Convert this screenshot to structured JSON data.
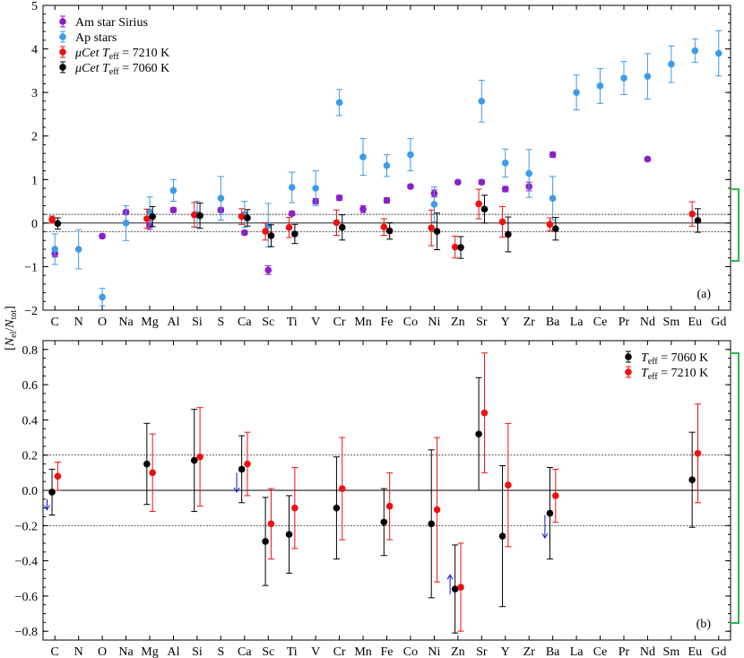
{
  "colors": {
    "am_sirius": "#8b1fc8",
    "ap_stars": "#3d9be9",
    "teff_7210": "#ee1111",
    "teff_7060": "#000000",
    "arrow": "#1010cc",
    "bracket": "#2fb84a",
    "axis": "#000000"
  },
  "ylabel": "[N_el/N_tot]",
  "chart_data": [
    {
      "type": "scatter",
      "panel": "(a)",
      "categories": [
        "C",
        "N",
        "O",
        "Na",
        "Mg",
        "Al",
        "Si",
        "S",
        "Ca",
        "Sc",
        "Ti",
        "V",
        "Cr",
        "Mn",
        "Fe",
        "Co",
        "Ni",
        "Zn",
        "Sr",
        "Y",
        "Zr",
        "Ba",
        "La",
        "Ce",
        "Pr",
        "Nd",
        "Sm",
        "Eu",
        "Gd"
      ],
      "ylim": [
        -2,
        5
      ],
      "yticks": [
        -2,
        -1,
        0,
        1,
        2,
        3,
        4,
        5
      ],
      "hlines": [
        0,
        0.2,
        -0.2
      ],
      "legend_position": "top-left",
      "series": [
        {
          "name": "Am star Sirius",
          "color_key": "am_sirius",
          "points": [
            {
              "el": "C",
              "y": -0.7,
              "err": 0.08
            },
            {
              "el": "O",
              "y": -0.3,
              "err": 0.05
            },
            {
              "el": "Na",
              "y": 0.25,
              "err": 0.05
            },
            {
              "el": "Mg",
              "y": -0.05,
              "err": 0.1
            },
            {
              "el": "Al",
              "y": 0.3,
              "err": 0.05
            },
            {
              "el": "Si",
              "y": 0.2,
              "err": 0.05
            },
            {
              "el": "S",
              "y": 0.3,
              "err": 0.05
            },
            {
              "el": "Ca",
              "y": -0.22,
              "err": 0.05
            },
            {
              "el": "Sc",
              "y": -1.08,
              "err": 0.1
            },
            {
              "el": "Ti",
              "y": 0.22,
              "err": 0.05
            },
            {
              "el": "V",
              "y": 0.5,
              "err": 0.06
            },
            {
              "el": "Cr",
              "y": 0.58,
              "err": 0.06
            },
            {
              "el": "Mn",
              "y": 0.32,
              "err": 0.08
            },
            {
              "el": "Fe",
              "y": 0.52,
              "err": 0.06
            },
            {
              "el": "Co",
              "y": 0.84,
              "err": 0.04
            },
            {
              "el": "Ni",
              "y": 0.68,
              "err": 0.08
            },
            {
              "el": "Zn",
              "y": 0.94,
              "err": 0.04
            },
            {
              "el": "Sr",
              "y": 0.94,
              "err": 0.05
            },
            {
              "el": "Y",
              "y": 0.78,
              "err": 0.06
            },
            {
              "el": "Zr",
              "y": 0.84,
              "err": 0.1
            },
            {
              "el": "Ba",
              "y": 1.57,
              "err": 0.06
            },
            {
              "el": "Nd",
              "y": 1.47,
              "err": 0.04
            }
          ]
        },
        {
          "name": "Ap stars",
          "color_key": "ap_stars",
          "points": [
            {
              "el": "C",
              "y": -0.6,
              "err": 0.35
            },
            {
              "el": "N",
              "y": -0.6,
              "err": 0.45
            },
            {
              "el": "O",
              "y": -1.7,
              "err": 0.2
            },
            {
              "el": "Na",
              "y": 0.0,
              "err": 0.4
            },
            {
              "el": "Mg",
              "y": 0.25,
              "err": 0.35
            },
            {
              "el": "Al",
              "y": 0.75,
              "err": 0.25
            },
            {
              "el": "Si",
              "y": 0.2,
              "err": 0.3
            },
            {
              "el": "S",
              "y": 0.57,
              "err": 0.5
            },
            {
              "el": "Ca",
              "y": 0.2,
              "err": 0.3
            },
            {
              "el": "Sc",
              "y": -0.05,
              "err": 0.5
            },
            {
              "el": "Ti",
              "y": 0.82,
              "err": 0.35
            },
            {
              "el": "V",
              "y": 0.8,
              "err": 0.4
            },
            {
              "el": "Cr",
              "y": 2.77,
              "err": 0.3
            },
            {
              "el": "Mn",
              "y": 1.52,
              "err": 0.42
            },
            {
              "el": "Fe",
              "y": 1.32,
              "err": 0.25
            },
            {
              "el": "Co",
              "y": 1.57,
              "err": 0.37
            },
            {
              "el": "Ni",
              "y": 0.43,
              "err": 0.4
            },
            {
              "el": "Sr",
              "y": 2.8,
              "err": 0.48
            },
            {
              "el": "Y",
              "y": 1.38,
              "err": 0.32
            },
            {
              "el": "Zr",
              "y": 1.14,
              "err": 0.55
            },
            {
              "el": "Ba",
              "y": 0.57,
              "err": 0.5
            },
            {
              "el": "La",
              "y": 3.0,
              "err": 0.4
            },
            {
              "el": "Ce",
              "y": 3.15,
              "err": 0.4
            },
            {
              "el": "Pr",
              "y": 3.33,
              "err": 0.38
            },
            {
              "el": "Nd",
              "y": 3.37,
              "err": 0.52
            },
            {
              "el": "Sm",
              "y": 3.65,
              "err": 0.42
            },
            {
              "el": "Eu",
              "y": 3.96,
              "err": 0.27
            },
            {
              "el": "Gd",
              "y": 3.9,
              "err": 0.52
            }
          ]
        },
        {
          "name": "μCet Teff = 7210 K",
          "label_parts": {
            "prefix": "μCet ",
            "var": "T",
            "sub": "eff",
            "suffix": " = 7210 K"
          },
          "color_key": "teff_7210",
          "offset": -0.12,
          "points": [
            {
              "el": "C",
              "y": 0.08,
              "err": 0.08
            },
            {
              "el": "Mg",
              "y": 0.1,
              "err": 0.22
            },
            {
              "el": "Si",
              "y": 0.19,
              "err": 0.28
            },
            {
              "el": "Ca",
              "y": 0.15,
              "err": 0.18
            },
            {
              "el": "Sc",
              "y": -0.19,
              "err": 0.2
            },
            {
              "el": "Ti",
              "y": -0.1,
              "err": 0.23
            },
            {
              "el": "Cr",
              "y": 0.01,
              "err": 0.29
            },
            {
              "el": "Fe",
              "y": -0.09,
              "err": 0.19
            },
            {
              "el": "Ni",
              "y": -0.11,
              "err": 0.41
            },
            {
              "el": "Zn",
              "y": -0.55,
              "err": 0.25
            },
            {
              "el": "Sr",
              "y": 0.44,
              "err": 0.34
            },
            {
              "el": "Y",
              "y": 0.03,
              "err": 0.35
            },
            {
              "el": "Ba",
              "y": -0.03,
              "err": 0.15
            },
            {
              "el": "Eu",
              "y": 0.21,
              "err": 0.28
            }
          ]
        },
        {
          "name": "μCet Teff = 7060 K",
          "label_parts": {
            "prefix": "μCet ",
            "var": "T",
            "sub": "eff",
            "suffix": " = 7060 K"
          },
          "color_key": "teff_7060",
          "offset": 0.12,
          "points": [
            {
              "el": "C",
              "y": -0.01,
              "err": 0.13
            },
            {
              "el": "Mg",
              "y": 0.15,
              "err": 0.23
            },
            {
              "el": "Si",
              "y": 0.17,
              "err": 0.29
            },
            {
              "el": "Ca",
              "y": 0.12,
              "err": 0.19
            },
            {
              "el": "Sc",
              "y": -0.29,
              "err": 0.25
            },
            {
              "el": "Ti",
              "y": -0.25,
              "err": 0.22
            },
            {
              "el": "Cr",
              "y": -0.1,
              "err": 0.29
            },
            {
              "el": "Fe",
              "y": -0.18,
              "err": 0.19
            },
            {
              "el": "Ni",
              "y": -0.19,
              "err": 0.42
            },
            {
              "el": "Zn",
              "y": -0.56,
              "err": 0.25
            },
            {
              "el": "Sr",
              "y": 0.32,
              "err": 0.32
            },
            {
              "el": "Y",
              "y": -0.26,
              "err": 0.4
            },
            {
              "el": "Ba",
              "y": -0.13,
              "err": 0.26
            },
            {
              "el": "Eu",
              "y": 0.06,
              "err": 0.27
            }
          ]
        }
      ]
    },
    {
      "type": "scatter",
      "panel": "(b)",
      "categories": [
        "C",
        "N",
        "O",
        "Na",
        "Mg",
        "Al",
        "Si",
        "S",
        "Ca",
        "Sc",
        "Ti",
        "V",
        "Cr",
        "Mn",
        "Fe",
        "Co",
        "Ni",
        "Zn",
        "Sr",
        "Y",
        "Zr",
        "Ba",
        "La",
        "Ce",
        "Pr",
        "Nd",
        "Sm",
        "Eu",
        "Gd"
      ],
      "ylim": [
        -0.85,
        0.85
      ],
      "yticks": [
        -0.8,
        -0.6,
        -0.4,
        -0.2,
        0.0,
        0.2,
        0.4,
        0.6,
        0.8
      ],
      "ytick_labels": [
        "−0.8",
        "−0.6",
        "−0.4",
        "−0.2",
        "0.0",
        "0.2",
        "0.4",
        "0.6",
        "0.8"
      ],
      "hlines": [
        0,
        0.2,
        -0.2
      ],
      "legend_position": "top-right",
      "series": [
        {
          "name": "Teff = 7060 K",
          "label_parts": {
            "prefix": "",
            "var": "T",
            "sub": "eff",
            "suffix": " = 7060 K"
          },
          "color_key": "teff_7060",
          "offset": -0.12,
          "points": [
            {
              "el": "C",
              "y": -0.01,
              "err": 0.13
            },
            {
              "el": "Mg",
              "y": 0.15,
              "err": 0.23
            },
            {
              "el": "Si",
              "y": 0.17,
              "err": 0.29
            },
            {
              "el": "Ca",
              "y": 0.12,
              "err": 0.19
            },
            {
              "el": "Sc",
              "y": -0.29,
              "err": 0.25
            },
            {
              "el": "Ti",
              "y": -0.25,
              "err": 0.22
            },
            {
              "el": "Cr",
              "y": -0.1,
              "err": 0.29
            },
            {
              "el": "Fe",
              "y": -0.18,
              "err": 0.19
            },
            {
              "el": "Ni",
              "y": -0.19,
              "err": 0.42
            },
            {
              "el": "Zn",
              "y": -0.56,
              "err": 0.25
            },
            {
              "el": "Sr",
              "y": 0.32,
              "err": 0.32
            },
            {
              "el": "Y",
              "y": -0.26,
              "err": 0.4
            },
            {
              "el": "Ba",
              "y": -0.13,
              "err": 0.26
            },
            {
              "el": "Eu",
              "y": 0.06,
              "err": 0.27
            }
          ]
        },
        {
          "name": "Teff = 7210 K",
          "label_parts": {
            "prefix": "",
            "var": "T",
            "sub": "eff",
            "suffix": " = 7210 K"
          },
          "color_key": "teff_7210",
          "offset": 0.12,
          "points": [
            {
              "el": "C",
              "y": 0.08,
              "err": 0.08
            },
            {
              "el": "Mg",
              "y": 0.1,
              "err": 0.22
            },
            {
              "el": "Si",
              "y": 0.19,
              "err": 0.28
            },
            {
              "el": "Ca",
              "y": 0.15,
              "err": 0.18
            },
            {
              "el": "Sc",
              "y": -0.19,
              "err": 0.2
            },
            {
              "el": "Ti",
              "y": -0.1,
              "err": 0.23
            },
            {
              "el": "Cr",
              "y": 0.01,
              "err": 0.29
            },
            {
              "el": "Fe",
              "y": -0.09,
              "err": 0.19
            },
            {
              "el": "Ni",
              "y": -0.11,
              "err": 0.41
            },
            {
              "el": "Zn",
              "y": -0.55,
              "err": 0.25
            },
            {
              "el": "Sr",
              "y": 0.44,
              "err": 0.34
            },
            {
              "el": "Y",
              "y": 0.03,
              "err": 0.35
            },
            {
              "el": "Ba",
              "y": -0.03,
              "err": 0.15
            },
            {
              "el": "Eu",
              "y": 0.21,
              "err": 0.28
            }
          ]
        }
      ],
      "arrows": [
        {
          "el": "C",
          "from": -0.05,
          "to": -0.11
        },
        {
          "el": "Ca",
          "from": 0.1,
          "to": -0.01
        },
        {
          "el": "Zn",
          "from": -0.59,
          "to": -0.48
        },
        {
          "el": "Ba",
          "from": -0.14,
          "to": -0.27
        }
      ]
    }
  ]
}
